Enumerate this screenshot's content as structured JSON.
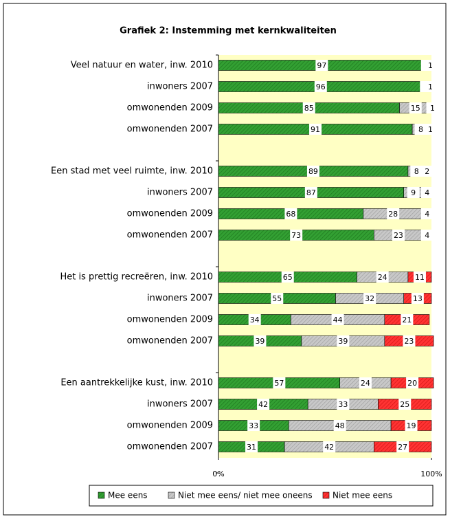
{
  "chart_data": {
    "type": "stacked-bar",
    "orientation": "horizontal",
    "title": "Grafiek 2: Instemming met kernkwaliteiten",
    "categories": [
      "Veel natuur en water, inw. 2010",
      "inwoners 2007",
      "omwonenden 2009",
      "omwonenden 2007",
      "Een stad met veel ruimte, inw. 2010",
      "inwoners 2007",
      "omwonenden 2009",
      "omwonenden 2007",
      "Het is prettig recreëren, inw. 2010",
      "inwoners 2007",
      "omwonenden 2009",
      "omwonenden 2007",
      "Een aantrekkelijke kust, inw. 2010",
      "inwoners 2007",
      "omwonenden 2009",
      "omwonenden 2007"
    ],
    "series": [
      {
        "name": "Mee eens",
        "color": "#33a033",
        "values": [
          97,
          96,
          85,
          91,
          89,
          87,
          68,
          73,
          65,
          55,
          34,
          39,
          57,
          42,
          33,
          31
        ]
      },
      {
        "name": "Niet mee eens/ niet mee oneens",
        "color": "#c8c8c8",
        "values": [
          2,
          3,
          15,
          8,
          8,
          9,
          28,
          23,
          24,
          32,
          44,
          39,
          24,
          33,
          48,
          42
        ]
      },
      {
        "name": "Niet mee eens",
        "color": "#ff3333",
        "values": [
          1,
          1,
          1,
          1,
          2,
          4,
          4,
          4,
          11,
          13,
          21,
          23,
          20,
          25,
          19,
          27
        ]
      }
    ],
    "xlim": [
      0,
      100
    ],
    "xticks": [
      {
        "value": 0,
        "label": "0%"
      },
      {
        "value": 100,
        "label": "100%"
      }
    ],
    "legend": "bottom"
  }
}
